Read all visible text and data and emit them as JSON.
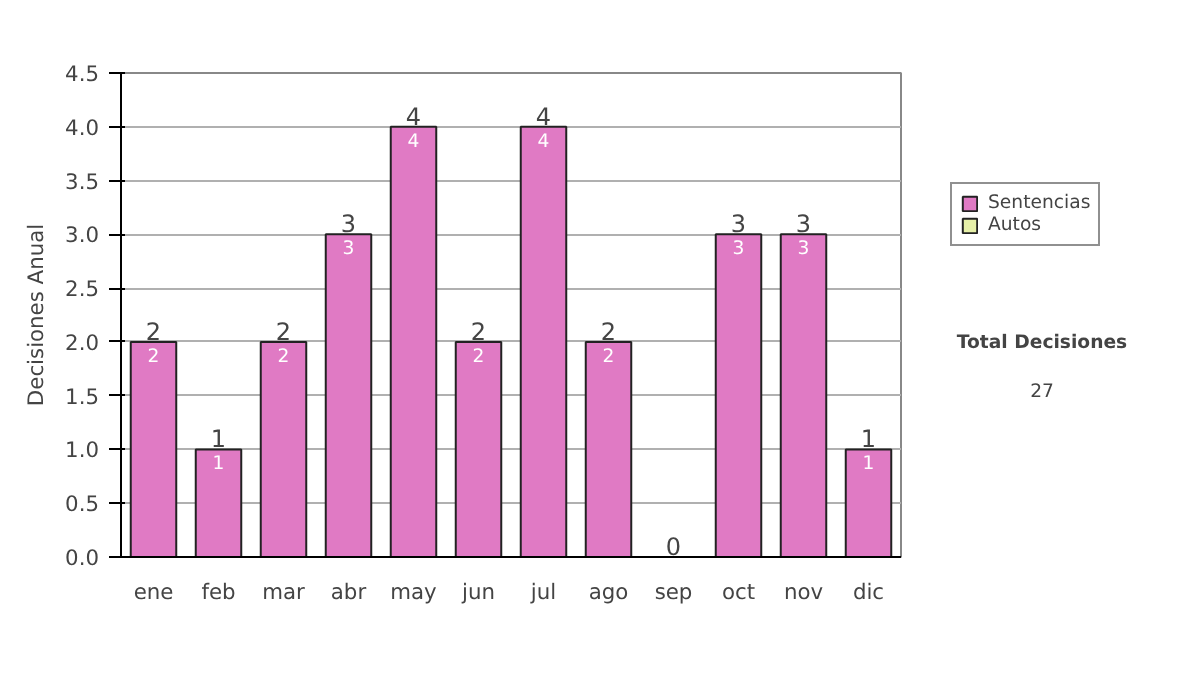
{
  "chart_data": {
    "type": "bar",
    "stacked": true,
    "ylabel": "Decisiones Anual",
    "categories": [
      "ene",
      "feb",
      "mar",
      "abr",
      "may",
      "jun",
      "jul",
      "ago",
      "sep",
      "oct",
      "nov",
      "dic"
    ],
    "series": [
      {
        "name": "Sentencias",
        "color": "#e07ac4",
        "values": [
          2,
          1,
          2,
          3,
          4,
          2,
          4,
          2,
          0,
          3,
          3,
          1
        ],
        "value_labels": [
          "2",
          "1",
          "2",
          "3",
          "4",
          "2",
          "4",
          "2",
          null,
          "3",
          "3",
          "1"
        ]
      },
      {
        "name": "Autos",
        "color": "#e6f0a8",
        "values": [
          0,
          0,
          0,
          0,
          0,
          0,
          0,
          0,
          0,
          0,
          0,
          0
        ]
      }
    ],
    "totals": [
      "2",
      "1",
      "2",
      "3",
      "4",
      "2",
      "4",
      "2",
      "0",
      "3",
      "3",
      "1"
    ],
    "ylim": [
      0,
      4.5
    ],
    "yticks": [
      {
        "value": 0,
        "label": "0.0"
      },
      {
        "value": 0.5,
        "label": "0.5"
      },
      {
        "value": 1,
        "label": "1.0"
      },
      {
        "value": 1.5,
        "label": "1.5"
      },
      {
        "value": 2,
        "label": "2.0"
      },
      {
        "value": 2.5,
        "label": "2.5"
      },
      {
        "value": 3,
        "label": "3.0"
      },
      {
        "value": 3.5,
        "label": "3.5"
      },
      {
        "value": 4,
        "label": "4.0"
      },
      {
        "value": 4.5,
        "label": "4.5"
      }
    ],
    "grid": "y",
    "legend": "right",
    "annotations": [
      "Total Decisiones",
      "27"
    ]
  }
}
